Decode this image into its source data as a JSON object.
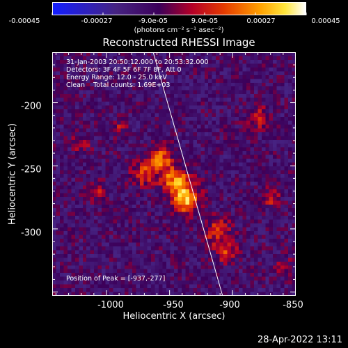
{
  "colorbar": {
    "tick_labels": [
      "-0.00045",
      "-0.00027",
      "-9.0e-05",
      "9.0e-05",
      "0.00027",
      "0.00045"
    ],
    "tick_values": [
      -0.00045,
      -0.00027,
      -9e-05,
      9e-05,
      0.00027,
      0.00045
    ],
    "range": [
      -0.00045,
      0.00045
    ],
    "units": "(photons cm⁻² s⁻¹ asec⁻²)"
  },
  "title": "Reconstructed RHESSI Image",
  "annotations": {
    "time_range": "31-Jan-2003 20:50:12.000 to 20:53:32.000",
    "detectors": "Detectors: 3F 4F 5F 6F 7F 8F, Att 0",
    "energy_range": "Energy Range: 12.0 - 25.0 keV",
    "algorithm": "Clean    Total counts: 1.69E+03",
    "peak": "Position of Peak = [-937,-277]"
  },
  "chart_data": {
    "type": "heatmap",
    "title": "Reconstructed RHESSI Image",
    "xlabel": "Heliocentric X (arcsec)",
    "ylabel": "Heliocentric Y (arcsec)",
    "xlim": [
      -1043,
      -850
    ],
    "ylim": [
      -353,
      -160
    ],
    "x_ticks": [
      -1000,
      -950,
      -900,
      -850
    ],
    "x_tick_labels": [
      "-1000",
      "-950",
      "-900",
      "-850"
    ],
    "y_ticks": [
      -300,
      -250,
      -200
    ],
    "y_tick_labels": [
      "-300",
      "-250",
      "-200"
    ],
    "colormap": "blue-purple-red-orange-yellow-white",
    "value_range": [
      -0.00045,
      0.00045
    ],
    "peak_position": [
      -937,
      -277
    ],
    "bright_sources": [
      {
        "x": -937,
        "y": -277,
        "value": 0.00045,
        "sigma": 7
      },
      {
        "x": -945,
        "y": -262,
        "value": 0.00038,
        "sigma": 8
      },
      {
        "x": -958,
        "y": -245,
        "value": 0.00034,
        "sigma": 7
      },
      {
        "x": -972,
        "y": -257,
        "value": 0.00027,
        "sigma": 6
      },
      {
        "x": -912,
        "y": -302,
        "value": 0.00025,
        "sigma": 7
      },
      {
        "x": -905,
        "y": -318,
        "value": 0.00022,
        "sigma": 6
      },
      {
        "x": -880,
        "y": -212,
        "value": 0.00022,
        "sigma": 6
      },
      {
        "x": -870,
        "y": -275,
        "value": 0.0002,
        "sigma": 5
      },
      {
        "x": -1008,
        "y": -270,
        "value": 0.00018,
        "sigma": 5
      },
      {
        "x": -1020,
        "y": -232,
        "value": 0.00016,
        "sigma": 5
      },
      {
        "x": -990,
        "y": -220,
        "value": 0.00014,
        "sigma": 4
      },
      {
        "x": -860,
        "y": -330,
        "value": 0.00017,
        "sigma": 5
      }
    ],
    "limb_line": {
      "points": [
        [
          -963,
          -160
        ],
        [
          -908,
          -353
        ]
      ]
    }
  },
  "footer": {
    "datestamp": "28-Apr-2022 13:11"
  }
}
